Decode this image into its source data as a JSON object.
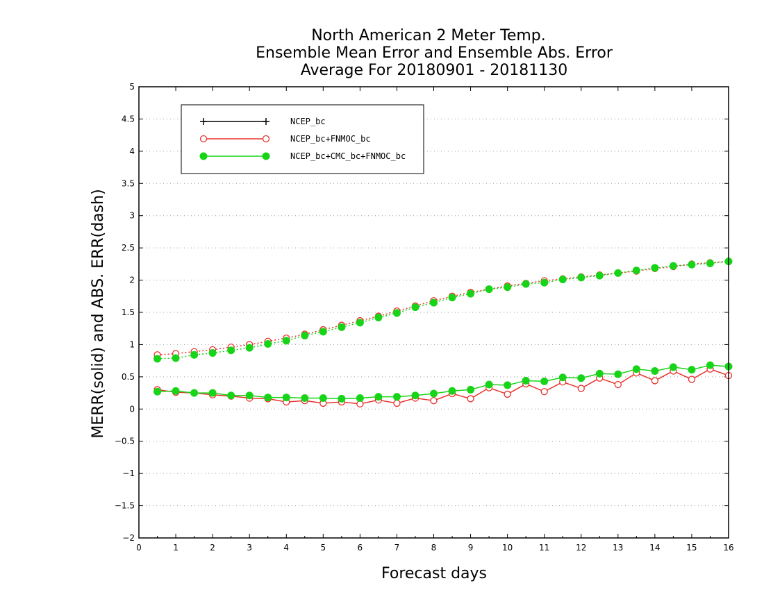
{
  "chart_data": {
    "type": "line",
    "title_lines": [
      "North American 2 Meter Temp.",
      "Ensemble Mean Error and Ensemble Abs. Error",
      "Average For 20180901 - 20181130"
    ],
    "xlabel": "Forecast days",
    "ylabel": "MERR(solid) and ABS. ERR(dash)",
    "xlim": [
      0,
      16
    ],
    "ylim": [
      -2,
      5
    ],
    "xticks": [
      "0",
      "1",
      "2",
      "3",
      "4",
      "5",
      "6",
      "7",
      "8",
      "9",
      "10",
      "11",
      "12",
      "13",
      "14",
      "15",
      "16"
    ],
    "yticks": [
      "−2",
      "−1.5",
      "−1",
      "−0.5",
      "0",
      "0.5",
      "1",
      "1.5",
      "2",
      "2.5",
      "3",
      "3.5",
      "4",
      "4.5",
      "5"
    ],
    "grid": true,
    "legend_position": "top-left",
    "x": [
      0.5,
      1,
      1.5,
      2,
      2.5,
      3,
      3.5,
      4,
      4.5,
      5,
      5.5,
      6,
      6.5,
      7,
      7.5,
      8,
      8.5,
      9,
      9.5,
      10,
      10.5,
      11,
      11.5,
      12,
      12.5,
      13,
      13.5,
      14,
      14.5,
      15,
      15.5,
      16
    ],
    "series": [
      {
        "name": "NCEP_bc",
        "color": "#000000",
        "marker": "plus",
        "merr": [],
        "abs_err": []
      },
      {
        "name": "NCEP_bc+FNMOC_bc",
        "color": "#e8322e",
        "marker": "open-circle",
        "merr": [
          0.3,
          0.26,
          0.25,
          0.22,
          0.2,
          0.17,
          0.16,
          0.11,
          0.13,
          0.09,
          0.11,
          0.08,
          0.14,
          0.09,
          0.17,
          0.13,
          0.24,
          0.16,
          0.33,
          0.23,
          0.39,
          0.27,
          0.42,
          0.32,
          0.48,
          0.38,
          0.56,
          0.44,
          0.59,
          0.46,
          0.62,
          0.52
        ],
        "abs_err": [
          0.84,
          0.86,
          0.89,
          0.92,
          0.96,
          1.0,
          1.05,
          1.1,
          1.16,
          1.23,
          1.3,
          1.37,
          1.44,
          1.52,
          1.6,
          1.68,
          1.75,
          1.81,
          1.86,
          1.91,
          1.95,
          1.99,
          2.02,
          2.05,
          2.08,
          2.11,
          2.14,
          2.18,
          2.21,
          2.25,
          2.27,
          2.29
        ]
      },
      {
        "name": "NCEP_bc+CMC_bc+FNMOC_bc",
        "color": "#18d418",
        "marker": "filled-circle",
        "merr": [
          0.27,
          0.28,
          0.25,
          0.25,
          0.21,
          0.21,
          0.18,
          0.18,
          0.17,
          0.17,
          0.16,
          0.17,
          0.19,
          0.19,
          0.21,
          0.24,
          0.28,
          0.3,
          0.38,
          0.37,
          0.44,
          0.43,
          0.49,
          0.48,
          0.55,
          0.54,
          0.62,
          0.59,
          0.65,
          0.61,
          0.68,
          0.66
        ],
        "abs_err": [
          0.78,
          0.79,
          0.84,
          0.87,
          0.91,
          0.95,
          1.01,
          1.06,
          1.14,
          1.2,
          1.27,
          1.34,
          1.42,
          1.49,
          1.58,
          1.65,
          1.73,
          1.79,
          1.86,
          1.89,
          1.94,
          1.96,
          2.01,
          2.04,
          2.07,
          2.11,
          2.15,
          2.19,
          2.22,
          2.24,
          2.26,
          2.29
        ]
      }
    ]
  }
}
